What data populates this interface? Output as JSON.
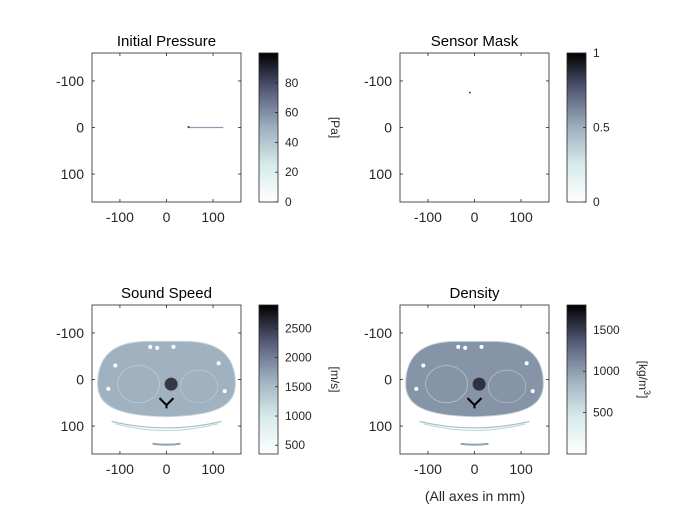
{
  "figure_note": "(All axes in mm)",
  "chart_data": [
    {
      "type": "heatmap",
      "title": "Initial Pressure",
      "xlim": [
        -160,
        160
      ],
      "ylim": [
        -160,
        160
      ],
      "y_reversed": true,
      "x_ticks": [
        -100,
        0,
        100
      ],
      "y_ticks": [
        -100,
        0,
        100
      ],
      "colorbar": {
        "range": [
          0,
          100
        ],
        "ticks": [
          0,
          20,
          40,
          60,
          80
        ],
        "label": "[Pa]"
      },
      "colormap": "bone-reversed",
      "content": "pressure-line",
      "line": {
        "x0": 45,
        "x1": 122,
        "y": 0,
        "value": 55
      }
    },
    {
      "type": "heatmap",
      "title": "Sensor Mask",
      "xlim": [
        -160,
        160
      ],
      "ylim": [
        -160,
        160
      ],
      "y_reversed": true,
      "x_ticks": [
        -100,
        0,
        100
      ],
      "y_ticks": [
        -100,
        0,
        100
      ],
      "colorbar": {
        "range": [
          0,
          1
        ],
        "ticks": [
          0,
          0.5,
          1
        ],
        "label": ""
      },
      "colormap": "bone-reversed",
      "content": "point",
      "point": {
        "x": -10,
        "y": -75,
        "value": 1
      }
    },
    {
      "type": "heatmap",
      "title": "Sound Speed",
      "xlim": [
        -160,
        160
      ],
      "ylim": [
        -160,
        160
      ],
      "y_reversed": true,
      "x_ticks": [
        -100,
        0,
        100
      ],
      "y_ticks": [
        -100,
        0,
        100
      ],
      "colorbar": {
        "range": [
          350,
          2900
        ],
        "ticks": [
          500,
          1000,
          1500,
          2000,
          2500
        ],
        "label": "[m/s]"
      },
      "colormap": "bone-reversed",
      "content": "ct-slice",
      "body_value": 1600,
      "background_value": 350
    },
    {
      "type": "heatmap",
      "title": "Density",
      "xlim": [
        -160,
        160
      ],
      "ylim": [
        -160,
        160
      ],
      "y_reversed": true,
      "x_ticks": [
        -100,
        0,
        100
      ],
      "y_ticks": [
        -100,
        0,
        100
      ],
      "colorbar": {
        "range": [
          0,
          1800
        ],
        "ticks": [
          500,
          1000,
          1500
        ],
        "label": "[kg/m",
        "label_sup": "3",
        "label_end": "]"
      },
      "colormap": "bone-reversed",
      "content": "ct-slice",
      "body_value": 1050,
      "background_value": 0
    }
  ]
}
